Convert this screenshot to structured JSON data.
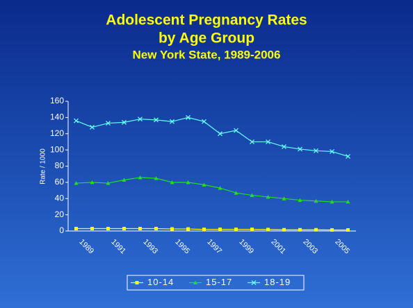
{
  "chart_data": {
    "type": "line",
    "title": "Adolescent Pregnancy Rates",
    "title_line2": "by Age Group",
    "subtitle": "New York State, 1989-2006",
    "y_label": "Rate / 1000",
    "categories": [
      "1989",
      null,
      "1991",
      null,
      "1993",
      null,
      "1995",
      null,
      "1997",
      null,
      "1999",
      null,
      "2001",
      null,
      "2003",
      null,
      "2005",
      null
    ],
    "series": [
      {
        "name": "10-14",
        "color": "#ffff00",
        "marker": "square",
        "values": [
          3,
          3,
          3,
          3,
          3,
          3,
          2.5,
          2.5,
          2,
          2,
          2,
          2,
          1.8,
          1.5,
          1.5,
          1.5,
          1.3,
          1.3
        ]
      },
      {
        "name": "15-17",
        "color": "#22dd22",
        "marker": "triangle",
        "values": [
          59,
          60,
          59,
          63,
          66,
          65,
          60,
          60,
          57,
          53,
          47,
          44,
          42,
          40,
          38,
          37,
          36,
          36
        ]
      },
      {
        "name": "18-19",
        "color": "#66ffff",
        "marker": "x",
        "values": [
          136,
          128,
          133,
          134,
          138,
          137,
          135,
          140,
          135,
          120,
          124,
          110,
          110,
          104,
          101,
          99,
          98,
          92
        ]
      }
    ],
    "ylim": [
      0,
      160
    ],
    "yticks": [
      0,
      20,
      40,
      60,
      80,
      100,
      120,
      140,
      160
    ],
    "legend": "bottom"
  }
}
